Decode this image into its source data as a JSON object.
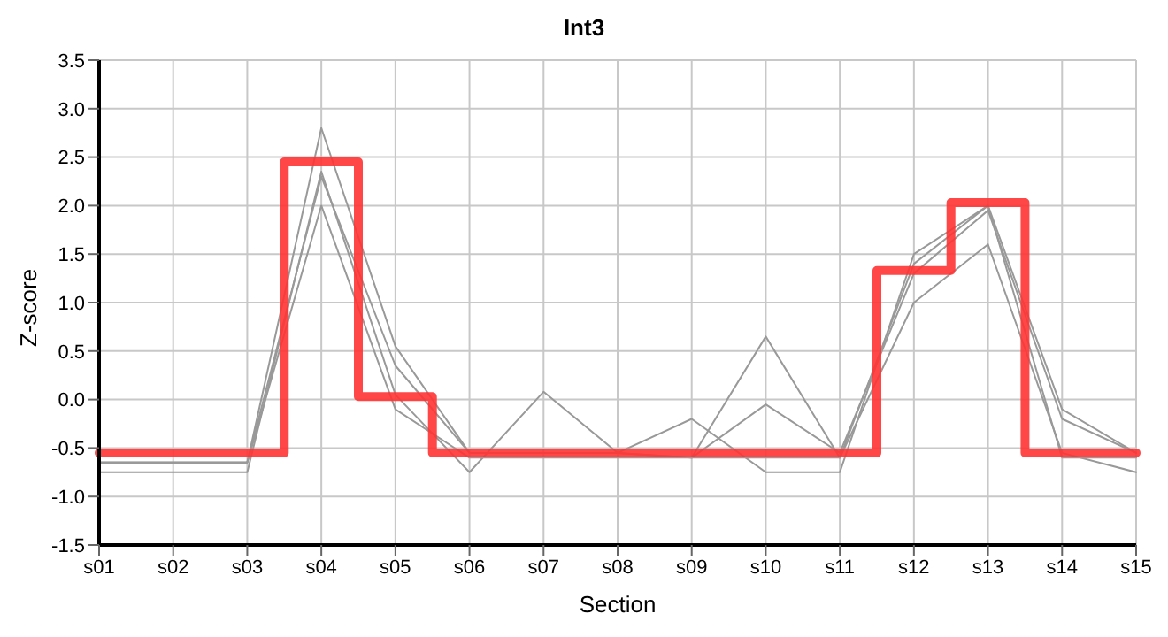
{
  "chart_data": {
    "type": "line",
    "title": "Int3",
    "xlabel": "Section",
    "ylabel": "Z-score",
    "categories": [
      "s01",
      "s02",
      "s03",
      "s04",
      "s05",
      "s06",
      "s07",
      "s08",
      "s09",
      "s10",
      "s11",
      "s12",
      "s13",
      "s14",
      "s15"
    ],
    "series": [
      {
        "color": "#999999",
        "values": [
          -0.75,
          -0.75,
          -0.75,
          2.35,
          0.05,
          -0.75,
          0.08,
          -0.55,
          -0.6,
          -0.6,
          -0.6,
          1.4,
          2.0,
          -0.6,
          -0.6
        ]
      },
      {
        "color": "#999999",
        "values": [
          -0.65,
          -0.65,
          -0.65,
          2.8,
          0.55,
          -0.55,
          -0.55,
          -0.55,
          -0.2,
          -0.75,
          -0.75,
          1.5,
          2.0,
          -0.1,
          -0.55
        ]
      },
      {
        "color": "#999999",
        "values": [
          -0.65,
          -0.65,
          -0.65,
          2.0,
          -0.1,
          -0.6,
          -0.6,
          -0.6,
          -0.6,
          0.65,
          -0.6,
          1.0,
          1.6,
          -0.55,
          -0.75
        ]
      },
      {
        "color": "#999999",
        "values": [
          -0.65,
          -0.65,
          -0.65,
          2.3,
          0.35,
          -0.55,
          -0.55,
          -0.55,
          -0.6,
          -0.05,
          -0.55,
          1.3,
          1.95,
          -0.2,
          -0.55
        ]
      },
      {
        "type": "step",
        "color": "#ff3333",
        "values": [
          -0.55,
          -0.55,
          -0.55,
          2.45,
          0.03,
          -0.55,
          -0.55,
          -0.55,
          -0.55,
          -0.55,
          -0.55,
          1.33,
          2.03,
          -0.55,
          -0.55
        ]
      }
    ],
    "ylim": [
      -1.5,
      3.5
    ],
    "yticks": [
      {
        "value": -1.5,
        "label": "-1.5"
      },
      {
        "value": -1,
        "label": "-1.0"
      },
      {
        "value": -0.5,
        "label": "-0.5"
      },
      {
        "value": 0,
        "label": "0.0"
      },
      {
        "value": 0.5,
        "label": "0.5"
      },
      {
        "value": 1,
        "label": "1.0"
      },
      {
        "value": 1.5,
        "label": "1.5"
      },
      {
        "value": 2,
        "label": "2.0"
      },
      {
        "value": 2.5,
        "label": "2.5"
      },
      {
        "value": 3,
        "label": "3.0"
      },
      {
        "value": 3.5,
        "label": "3.5"
      }
    ],
    "grid": true,
    "marker": "none"
  }
}
